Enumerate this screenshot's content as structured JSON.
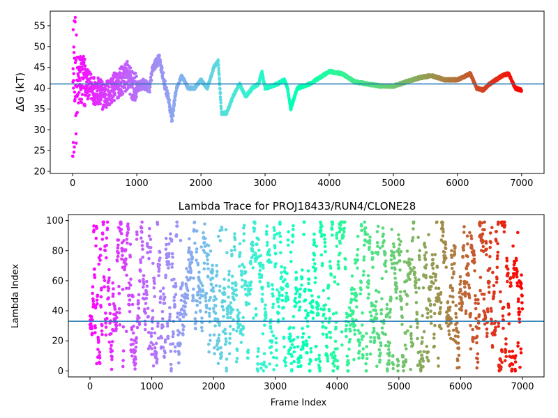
{
  "chart_data": [
    {
      "type": "scatter",
      "title": "",
      "xlabel": "",
      "ylabel": "ΔG (kT)",
      "xlim": [
        -350,
        7350
      ],
      "ylim": [
        19.5,
        58.5
      ],
      "xticks": [
        0,
        1000,
        2000,
        3000,
        4000,
        5000,
        6000,
        7000
      ],
      "yticks": [
        20,
        25,
        30,
        35,
        40,
        45,
        50,
        55
      ],
      "hline": 41,
      "hline_color": "#1f77b4",
      "colormap": "rainbow (red at frame 0 to violet at frame 7000)",
      "n_frames": 7000,
      "profile_keypoints": [
        [
          0,
          40
        ],
        [
          150,
          42
        ],
        [
          300,
          40
        ],
        [
          500,
          38
        ],
        [
          700,
          41
        ],
        [
          850,
          43
        ],
        [
          950,
          40
        ],
        [
          1100,
          41
        ],
        [
          1200,
          40
        ],
        [
          1250,
          45
        ],
        [
          1350,
          47
        ],
        [
          1450,
          40
        ],
        [
          1500,
          37
        ],
        [
          1550,
          32.5
        ],
        [
          1620,
          40
        ],
        [
          1700,
          43
        ],
        [
          1800,
          40
        ],
        [
          1900,
          40
        ],
        [
          2000,
          42
        ],
        [
          2100,
          40
        ],
        [
          2200,
          45
        ],
        [
          2270,
          46.5
        ],
        [
          2320,
          34
        ],
        [
          2400,
          34
        ],
        [
          2500,
          38
        ],
        [
          2600,
          41
        ],
        [
          2700,
          38
        ],
        [
          2800,
          40
        ],
        [
          2900,
          41
        ],
        [
          2950,
          44
        ],
        [
          3000,
          40
        ],
        [
          3200,
          41
        ],
        [
          3300,
          42
        ],
        [
          3350,
          40
        ],
        [
          3400,
          35
        ],
        [
          3500,
          40
        ],
        [
          3700,
          41
        ],
        [
          3800,
          42
        ],
        [
          3900,
          43
        ],
        [
          4000,
          44
        ],
        [
          4200,
          43.5
        ],
        [
          4400,
          41.5
        ],
        [
          4600,
          41
        ],
        [
          4800,
          40.5
        ],
        [
          5000,
          40.5
        ],
        [
          5200,
          41.5
        ],
        [
          5400,
          42.5
        ],
        [
          5600,
          43
        ],
        [
          5800,
          42
        ],
        [
          6000,
          42
        ],
        [
          6200,
          43.5
        ],
        [
          6300,
          40
        ],
        [
          6400,
          39.5
        ],
        [
          6500,
          41
        ],
        [
          6600,
          42
        ],
        [
          6700,
          43
        ],
        [
          6800,
          43.5
        ],
        [
          6900,
          40
        ],
        [
          7000,
          39.5
        ]
      ]
    },
    {
      "type": "scatter",
      "title": "Lambda Trace for PROJ18433/RUN4/CLONE28",
      "xlabel": "Frame Index",
      "ylabel": "Lambda Index",
      "xlim": [
        -350,
        7350
      ],
      "ylim": [
        -4,
        104
      ],
      "xticks": [
        0,
        1000,
        2000,
        3000,
        4000,
        5000,
        6000,
        7000
      ],
      "yticks": [
        0,
        20,
        40,
        60,
        80,
        100
      ],
      "hline": 33,
      "hline_color": "#1f77b4",
      "colormap": "rainbow (red at frame 0 to violet at frame 7000)",
      "n_frames": 7000,
      "value_range": [
        0,
        99
      ]
    }
  ]
}
